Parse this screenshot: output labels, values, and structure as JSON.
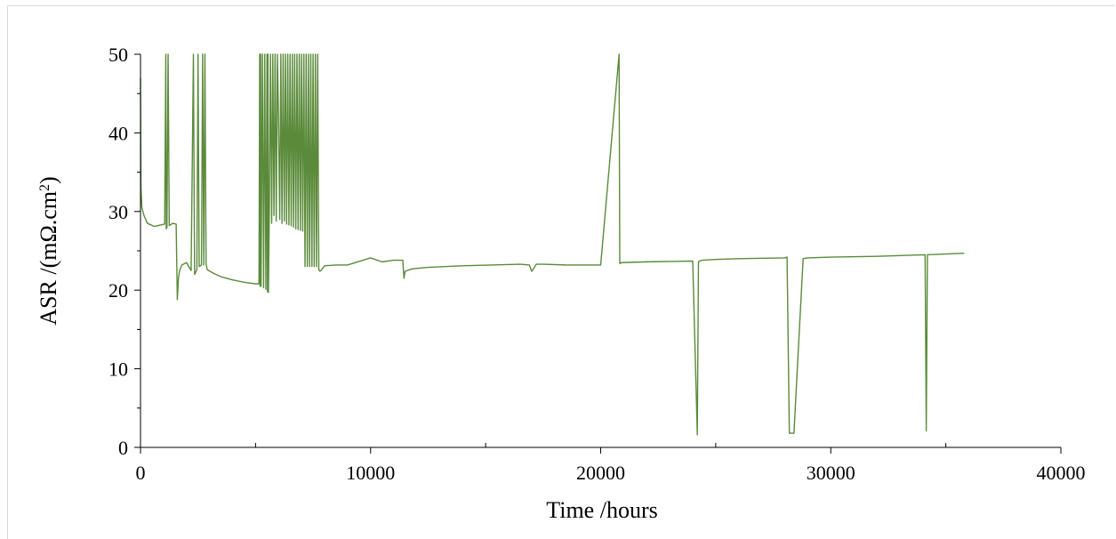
{
  "chart_data": {
    "type": "line",
    "title": "",
    "xlabel": "Time /hours",
    "ylabel": "ASR /(mΩ.cm²)",
    "ylabel_parts": {
      "main": "ASR /(mΩ.cm",
      "sup": "2",
      "close": ")"
    },
    "xlim": [
      0,
      40000
    ],
    "ylim": [
      0,
      50
    ],
    "x_ticks": [
      0,
      10000,
      20000,
      30000,
      40000
    ],
    "x_tick_labels": [
      "0",
      "10000",
      "20000",
      "30000",
      "40000"
    ],
    "y_ticks": [
      0,
      10,
      20,
      30,
      40,
      50
    ],
    "y_tick_labels": [
      "0",
      "10",
      "20",
      "30",
      "40",
      "50"
    ],
    "grid": false,
    "legend": "none",
    "series": [
      {
        "color": "#5a8a3a",
        "x": [
          0,
          20,
          60,
          150,
          300,
          600,
          900,
          1050,
          1100,
          1120,
          1150,
          1200,
          1250,
          1400,
          1550,
          1600,
          1650,
          1700,
          1800,
          2000,
          2200,
          2300,
          2350,
          2400,
          2450,
          2500,
          2550,
          2650,
          2700,
          2750,
          2800,
          2850,
          2900,
          3200,
          3500,
          4000,
          4500,
          5000,
          5150,
          5180,
          5200,
          5220,
          5240,
          5300,
          5350,
          5400,
          5450,
          5500,
          5520,
          5540,
          5560,
          5600,
          5650,
          5700,
          5750,
          5800,
          5850,
          5900,
          5950,
          6000,
          6050,
          6100,
          6150,
          6200,
          6250,
          6300,
          6350,
          6400,
          6450,
          6500,
          6550,
          6600,
          6650,
          6700,
          6750,
          6800,
          6850,
          6900,
          6950,
          7000,
          7050,
          7100,
          7150,
          7200,
          7250,
          7300,
          7350,
          7400,
          7450,
          7500,
          7550,
          7600,
          7650,
          7700,
          7750,
          7800,
          7850,
          8000,
          8500,
          9000,
          10000,
          10400,
          10500,
          11000,
          11400,
          11450,
          11500,
          11800,
          12500,
          14000,
          16500,
          16900,
          17000,
          17100,
          17200,
          17500,
          18500,
          20000,
          20800,
          20830,
          20860,
          20900,
          22000,
          24000,
          24200,
          24250,
          24300,
          24400,
          25000,
          26000,
          28000,
          28100,
          28200,
          28400,
          28600,
          28800,
          29000,
          30000,
          32000,
          34100,
          34150,
          34200,
          35000,
          35800
        ],
        "y": [
          47,
          33,
          30.5,
          29.5,
          28.5,
          28.1,
          28.3,
          28.4,
          50,
          27.8,
          28,
          50,
          28.2,
          28.5,
          28.4,
          18.8,
          21.5,
          22.5,
          23.2,
          23.5,
          22.5,
          50,
          22,
          22.3,
          22.6,
          50,
          23,
          23.2,
          50,
          23.2,
          50,
          23.3,
          22.6,
          22.1,
          21.7,
          21.3,
          21.0,
          20.8,
          20.8,
          50,
          20.5,
          50,
          20.5,
          50,
          20.3,
          50,
          20.1,
          50,
          19.8,
          50,
          19.7,
          30.5,
          50,
          28.5,
          50,
          29.5,
          50,
          28.8,
          50,
          41.5,
          29,
          50,
          28.5,
          50,
          28.8,
          50,
          28.4,
          50,
          28.3,
          50,
          28.2,
          50,
          28.0,
          50,
          27.8,
          50,
          27.7,
          50,
          27.6,
          50,
          27.5,
          50,
          23.0,
          50,
          23.0,
          50,
          23.0,
          50,
          23.0,
          50,
          23.0,
          50,
          23.0,
          50,
          22.6,
          22.4,
          22.5,
          23.1,
          23.2,
          23.2,
          24.1,
          23.7,
          23.6,
          23.8,
          23.8,
          21.5,
          22.4,
          22.7,
          22.9,
          23.1,
          23.3,
          23.2,
          22.4,
          22.8,
          23.3,
          23.3,
          23.2,
          23.2,
          50,
          23.4,
          23.4,
          23.5,
          23.6,
          23.7,
          1.6,
          23.6,
          23.7,
          23.8,
          23.9,
          24.0,
          24.1,
          24.2,
          1.8,
          1.8,
          13,
          24.0,
          24.1,
          24.2,
          24.3,
          24.5,
          2.1,
          24.5,
          24.6,
          24.7
        ]
      }
    ]
  }
}
